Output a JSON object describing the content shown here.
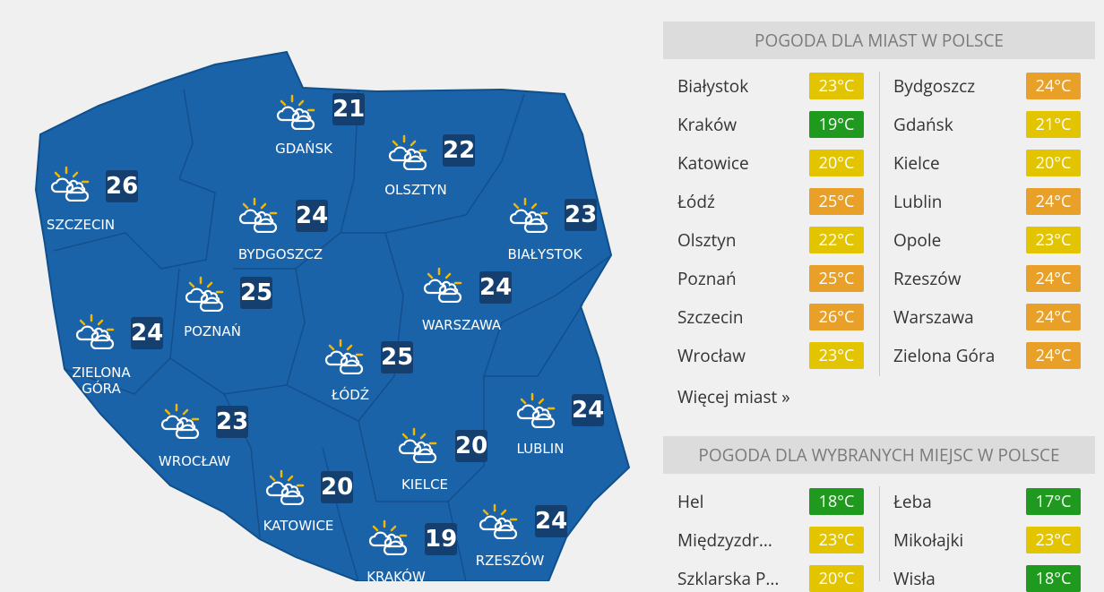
{
  "map": {
    "cities": [
      {
        "name": "GDAŃSK",
        "temp": 21
      },
      {
        "name": "OLSZTYN",
        "temp": 22
      },
      {
        "name": "SZCZECIN",
        "temp": 26
      },
      {
        "name": "BYDGOSZCZ",
        "temp": 24
      },
      {
        "name": "BIAŁYSTOK",
        "temp": 23
      },
      {
        "name": "POZNAŃ",
        "temp": 25
      },
      {
        "name": "WARSZAWA",
        "temp": 24
      },
      {
        "name": "ZIELONA GÓRA",
        "temp": 24
      },
      {
        "name": "ŁÓDŹ",
        "temp": 25
      },
      {
        "name": "LUBLIN",
        "temp": 24
      },
      {
        "name": "WROCŁAW",
        "temp": 23
      },
      {
        "name": "KIELCE",
        "temp": 20
      },
      {
        "name": "KATOWICE",
        "temp": 20
      },
      {
        "name": "KRAKÓW",
        "temp": 19
      },
      {
        "name": "RZESZÓW",
        "temp": 24
      }
    ]
  },
  "cities_panel": {
    "title": "POGODA DLA MIAST W POLSCE",
    "left": [
      {
        "name": "Białystok",
        "temp": "23°C",
        "color": "#e3c400"
      },
      {
        "name": "Kraków",
        "temp": "19°C",
        "color": "#1f9a1f"
      },
      {
        "name": "Katowice",
        "temp": "20°C",
        "color": "#e3c400"
      },
      {
        "name": "Łódź",
        "temp": "25°C",
        "color": "#e8a028"
      },
      {
        "name": "Olsztyn",
        "temp": "22°C",
        "color": "#e3c400"
      },
      {
        "name": "Poznań",
        "temp": "25°C",
        "color": "#e8a028"
      },
      {
        "name": "Szczecin",
        "temp": "26°C",
        "color": "#e8a028"
      },
      {
        "name": "Wrocław",
        "temp": "23°C",
        "color": "#e3c400"
      }
    ],
    "right": [
      {
        "name": "Bydgoszcz",
        "temp": "24°C",
        "color": "#e8a028"
      },
      {
        "name": "Gdańsk",
        "temp": "21°C",
        "color": "#e3c400"
      },
      {
        "name": "Kielce",
        "temp": "20°C",
        "color": "#e3c400"
      },
      {
        "name": "Lublin",
        "temp": "24°C",
        "color": "#e8a028"
      },
      {
        "name": "Opole",
        "temp": "23°C",
        "color": "#e3c400"
      },
      {
        "name": "Rzeszów",
        "temp": "24°C",
        "color": "#e8a028"
      },
      {
        "name": "Warszawa",
        "temp": "24°C",
        "color": "#e8a028"
      },
      {
        "name": "Zielona Góra",
        "temp": "24°C",
        "color": "#e8a028"
      }
    ],
    "more": "Więcej miast »"
  },
  "places_panel": {
    "title": "POGODA DLA WYBRANYCH MIEJSC W POLSCE",
    "left": [
      {
        "name": "Hel",
        "temp": "18°C",
        "color": "#1f9a1f"
      },
      {
        "name": "Międzyzdr...",
        "temp": "23°C",
        "color": "#e3c400"
      },
      {
        "name": "Szklarska P...",
        "temp": "20°C",
        "color": "#e3c400"
      }
    ],
    "right": [
      {
        "name": "Łeba",
        "temp": "17°C",
        "color": "#1f9a1f"
      },
      {
        "name": "Mikołajki",
        "temp": "23°C",
        "color": "#e3c400"
      },
      {
        "name": "Wisła",
        "temp": "18°C",
        "color": "#1f9a1f"
      }
    ]
  }
}
